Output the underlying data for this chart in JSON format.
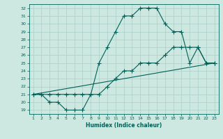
{
  "xlabel": "Humidex (Indice chaleur)",
  "bg_color": "#cce8e0",
  "grid_color": "#aacfc8",
  "line_color": "#006058",
  "xlim": [
    0.5,
    23.5
  ],
  "ylim": [
    18.5,
    32.5
  ],
  "xticks": [
    1,
    2,
    3,
    4,
    5,
    6,
    7,
    8,
    9,
    10,
    11,
    12,
    13,
    14,
    15,
    16,
    17,
    18,
    19,
    20,
    21,
    22,
    23
  ],
  "yticks": [
    19,
    20,
    21,
    22,
    23,
    24,
    25,
    26,
    27,
    28,
    29,
    30,
    31,
    32
  ],
  "line1_x": [
    1,
    2,
    3,
    4,
    5,
    6,
    7,
    8,
    9,
    10,
    11,
    12,
    13,
    14,
    15,
    16,
    17,
    18,
    19,
    20,
    21,
    22,
    23
  ],
  "line1_y": [
    21,
    21,
    20,
    20,
    19,
    19,
    19,
    21,
    25,
    27,
    29,
    31,
    31,
    32,
    32,
    32,
    30,
    29,
    29,
    25,
    27,
    25,
    25
  ],
  "line2_x": [
    1,
    2,
    3,
    4,
    5,
    6,
    7,
    8,
    9,
    10,
    11,
    12,
    13,
    14,
    15,
    16,
    17,
    18,
    19,
    20,
    21,
    22,
    23
  ],
  "line2_y": [
    21,
    21,
    21,
    21,
    21,
    21,
    21,
    21,
    21,
    22,
    23,
    24,
    24,
    25,
    25,
    25,
    26,
    27,
    27,
    27,
    27,
    25,
    25
  ],
  "line3_x": [
    1,
    23
  ],
  "line3_y": [
    21,
    25
  ]
}
